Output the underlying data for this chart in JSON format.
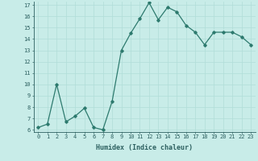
{
  "x": [
    0,
    1,
    2,
    3,
    4,
    5,
    6,
    7,
    8,
    9,
    10,
    11,
    12,
    13,
    14,
    15,
    16,
    17,
    18,
    19,
    20,
    21,
    22,
    23
  ],
  "y": [
    6.2,
    6.5,
    10.0,
    6.7,
    7.2,
    7.9,
    6.2,
    6.0,
    8.5,
    13.0,
    14.5,
    15.8,
    17.2,
    15.7,
    16.8,
    16.4,
    15.2,
    14.6,
    13.5,
    14.6,
    14.6,
    14.6,
    14.2,
    13.5
  ],
  "xlabel": "Humidex (Indice chaleur)",
  "ylim_min": 6,
  "ylim_max": 17,
  "xlim_min": -0.5,
  "xlim_max": 23.5,
  "yticks": [
    6,
    7,
    8,
    9,
    10,
    11,
    12,
    13,
    14,
    15,
    16,
    17
  ],
  "xticks": [
    0,
    1,
    2,
    3,
    4,
    5,
    6,
    7,
    8,
    9,
    10,
    11,
    12,
    13,
    14,
    15,
    16,
    17,
    18,
    19,
    20,
    21,
    22,
    23
  ],
  "line_color": "#2d7a6e",
  "bg_color": "#c8ece8",
  "grid_color": "#b0ddd8",
  "tick_label_color": "#2d6060",
  "xlabel_color": "#2d6060",
  "marker": "D",
  "marker_size": 1.8,
  "linewidth": 0.9,
  "tick_fontsize": 5.0,
  "xlabel_fontsize": 6.0
}
